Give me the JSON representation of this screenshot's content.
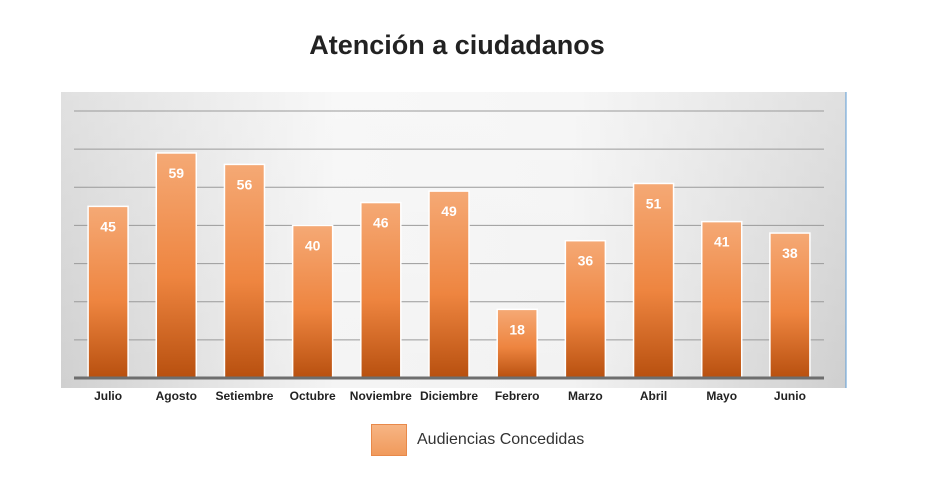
{
  "chart_data": {
    "type": "bar",
    "title": "Atención a ciudadanos",
    "categories": [
      "Julio",
      "Agosto",
      "Setiembre",
      "Octubre",
      "Noviembre",
      "Diciembre",
      "Febrero",
      "Marzo",
      "Abril",
      "Mayo",
      "Junio"
    ],
    "series": [
      {
        "name": "Audiencias Concedidas",
        "values": [
          45,
          59,
          56,
          40,
          46,
          49,
          18,
          36,
          51,
          41,
          38
        ],
        "color": "#ed7d31"
      }
    ],
    "xlabel": "",
    "ylabel": "",
    "ylim": [
      0,
      70
    ],
    "grid": true,
    "legend_position": "bottom",
    "data_labels": true
  }
}
